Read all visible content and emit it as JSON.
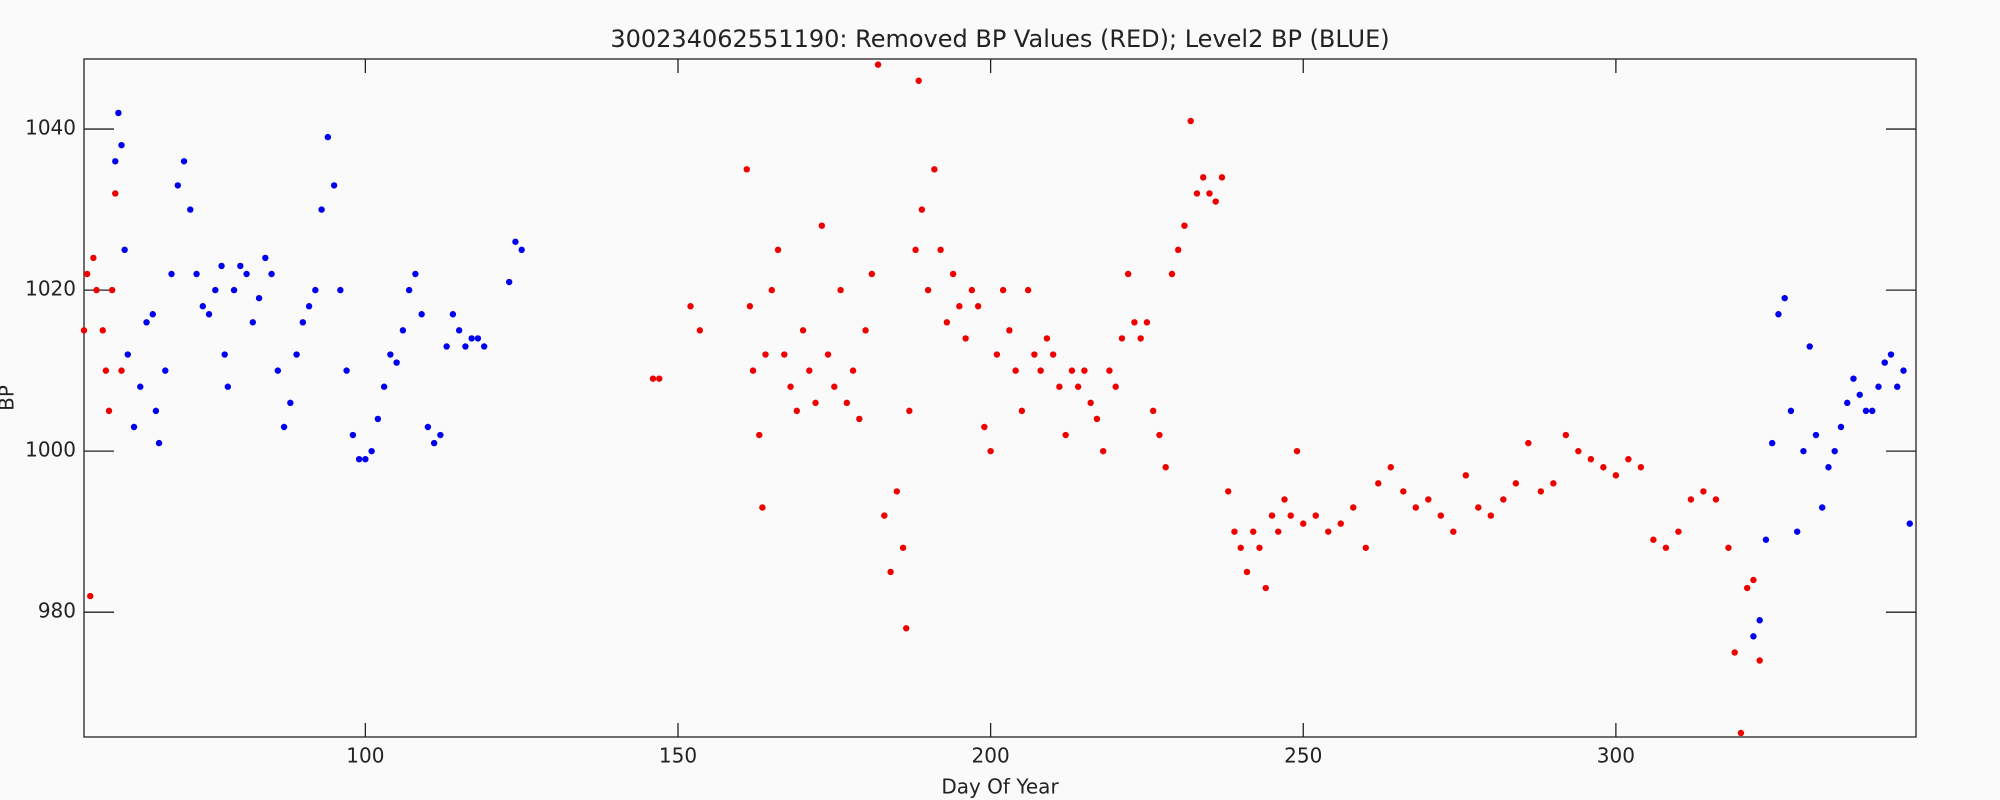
{
  "chart_data": {
    "type": "scatter",
    "title": "300234062551190: Removed BP Values (RED); Level2 BP (BLUE)",
    "x_label": "Day Of Year",
    "y_label": "BP",
    "xlim": [
      55,
      348
    ],
    "ylim": [
      964.5,
      1048.7
    ],
    "xticks": [
      100,
      150,
      200,
      250,
      300
    ],
    "yticks": [
      980,
      1000,
      1020,
      1040
    ],
    "series": [
      {
        "color": "#0000ee",
        "x": [
          60,
          60.5,
          61,
          61.5,
          62,
          63,
          64,
          65,
          66,
          66.5,
          67,
          68,
          69,
          70,
          71,
          72,
          73,
          74,
          75,
          76,
          77,
          77.5,
          78,
          79,
          80,
          81,
          82,
          83,
          84,
          85,
          86,
          87,
          88,
          89,
          90,
          91,
          92,
          93,
          94,
          95,
          96,
          97,
          98,
          99,
          100,
          101,
          102,
          103,
          104,
          105,
          106,
          107,
          108,
          109,
          110,
          111,
          112,
          113,
          114,
          115,
          116,
          117,
          118,
          119,
          123,
          124,
          125,
          322,
          323,
          324,
          325,
          326,
          327,
          328,
          329,
          330,
          331,
          332,
          333,
          334,
          335,
          336,
          337,
          338,
          339,
          340,
          341,
          342,
          343,
          344,
          345,
          346,
          347
        ],
        "values": [
          1036,
          1042,
          1038,
          1025,
          1012,
          1003,
          1008,
          1016,
          1017,
          1005,
          1001,
          1010,
          1022,
          1033,
          1036,
          1030,
          1022,
          1018,
          1017,
          1020,
          1023,
          1012,
          1008,
          1020,
          1023,
          1022,
          1016,
          1019,
          1024,
          1022,
          1010,
          1003,
          1006,
          1012,
          1016,
          1018,
          1020,
          1030,
          1039,
          1033,
          1020,
          1010,
          1002,
          999,
          999,
          1000,
          1004,
          1008,
          1012,
          1011,
          1015,
          1020,
          1022,
          1017,
          1003,
          1001,
          1002,
          1013,
          1017,
          1015,
          1013,
          1014,
          1014,
          1013,
          1021,
          1026,
          1025,
          977,
          979,
          989,
          1001,
          1017,
          1019,
          1005,
          990,
          1000,
          1013,
          1002,
          993,
          998,
          1000,
          1003,
          1006,
          1009,
          1007,
          1005,
          1005,
          1008,
          1011,
          1012,
          1008,
          1010,
          991
        ]
      },
      {
        "color": "#ee0000",
        "x": [
          55,
          55.5,
          56,
          56.5,
          57,
          58,
          58.5,
          59,
          59.5,
          60,
          61,
          146,
          147,
          152,
          153.5,
          161,
          161.5,
          162,
          163,
          163.5,
          164,
          165,
          166,
          167,
          168,
          169,
          170,
          171,
          172,
          173,
          174,
          175,
          176,
          177,
          178,
          179,
          180,
          181,
          182,
          183,
          184,
          185,
          186,
          186.5,
          187,
          188,
          188.5,
          189,
          190,
          191,
          192,
          193,
          194,
          195,
          196,
          197,
          198,
          199,
          200,
          201,
          202,
          203,
          204,
          205,
          206,
          207,
          208,
          209,
          210,
          211,
          212,
          213,
          214,
          215,
          216,
          217,
          218,
          219,
          220,
          221,
          222,
          223,
          224,
          225,
          226,
          227,
          228,
          229,
          230,
          231,
          232,
          233,
          234,
          235,
          236,
          237,
          238,
          239,
          240,
          241,
          242,
          243,
          244,
          245,
          246,
          247,
          248,
          249,
          250,
          252,
          254,
          256,
          258,
          260,
          262,
          264,
          266,
          268,
          270,
          272,
          274,
          276,
          278,
          280,
          282,
          284,
          286,
          288,
          290,
          292,
          294,
          296,
          298,
          300,
          302,
          304,
          306,
          308,
          310,
          312,
          314,
          316,
          318,
          319,
          320,
          321,
          322,
          323
        ],
        "values": [
          1015,
          1022,
          982,
          1024,
          1020,
          1015,
          1010,
          1005,
          1020,
          1032,
          1010,
          1009,
          1009,
          1018,
          1015,
          1035,
          1018,
          1010,
          1002,
          993,
          1012,
          1020,
          1025,
          1012,
          1008,
          1005,
          1015,
          1010,
          1006,
          1028,
          1012,
          1008,
          1020,
          1006,
          1010,
          1004,
          1015,
          1022,
          1048,
          992,
          985,
          995,
          988,
          978,
          1005,
          1025,
          1046,
          1030,
          1020,
          1035,
          1025,
          1016,
          1022,
          1018,
          1014,
          1020,
          1018,
          1003,
          1000,
          1012,
          1020,
          1015,
          1010,
          1005,
          1020,
          1012,
          1010,
          1014,
          1012,
          1008,
          1002,
          1010,
          1008,
          1010,
          1006,
          1004,
          1000,
          1010,
          1008,
          1014,
          1022,
          1016,
          1014,
          1016,
          1005,
          1002,
          998,
          1022,
          1025,
          1028,
          1041,
          1032,
          1034,
          1032,
          1031,
          1034,
          995,
          990,
          988,
          985,
          990,
          988,
          983,
          992,
          990,
          994,
          992,
          1000,
          991,
          992,
          990,
          991,
          993,
          988,
          996,
          998,
          995,
          993,
          994,
          992,
          990,
          997,
          993,
          992,
          994,
          996,
          1001,
          995,
          996,
          1002,
          1000,
          999,
          998,
          997,
          999,
          998,
          989,
          988,
          990,
          994,
          995,
          994,
          988,
          975,
          965,
          983,
          984,
          974
        ]
      }
    ]
  }
}
